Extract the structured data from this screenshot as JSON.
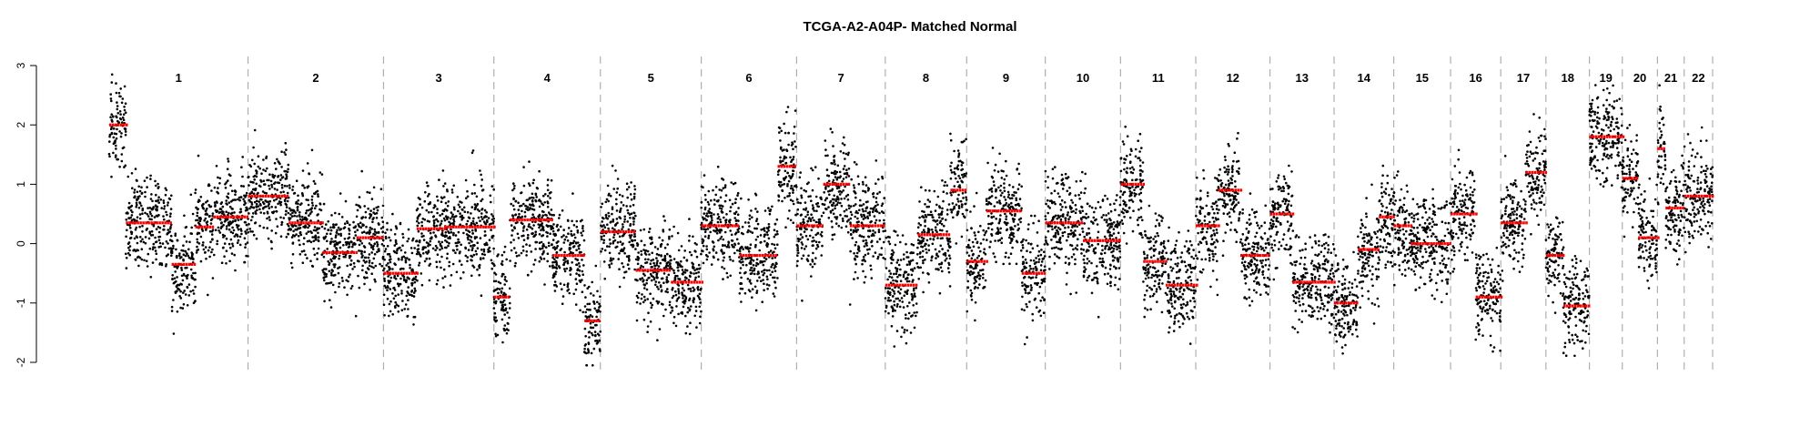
{
  "chart_data": {
    "type": "scatter",
    "title": "TCGA-A2-A04P- Matched Normal",
    "xlabel": "",
    "ylabel": "",
    "ylim": [
      -2.0,
      3.0
    ],
    "yticks": [
      -2,
      -1,
      0,
      1,
      2,
      3
    ],
    "grid": false,
    "legend": "none",
    "colors": {
      "points": "#000000",
      "segments": "#ff0000",
      "separators": "#b0b0b0"
    },
    "chromosomes": [
      {
        "label": "1",
        "rel_size": 249,
        "segments": [
          [
            0,
            0.12,
            2.0
          ],
          [
            0.12,
            0.45,
            0.35
          ],
          [
            0.45,
            0.62,
            -0.35
          ],
          [
            0.62,
            0.75,
            0.28
          ],
          [
            0.75,
            1.0,
            0.45
          ]
        ]
      },
      {
        "label": "2",
        "rel_size": 243,
        "segments": [
          [
            0,
            0.3,
            0.8
          ],
          [
            0.3,
            0.55,
            0.35
          ],
          [
            0.55,
            0.8,
            -0.15
          ],
          [
            0.8,
            1.0,
            0.1
          ]
        ]
      },
      {
        "label": "3",
        "rel_size": 198,
        "segments": [
          [
            0,
            0.3,
            -0.5
          ],
          [
            0.3,
            0.55,
            0.25
          ],
          [
            0.55,
            1.0,
            0.28
          ]
        ]
      },
      {
        "label": "4",
        "rel_size": 191,
        "segments": [
          [
            0,
            0.15,
            -0.9
          ],
          [
            0.15,
            0.55,
            0.4
          ],
          [
            0.55,
            0.85,
            -0.2
          ],
          [
            0.85,
            1.0,
            -1.3
          ]
        ]
      },
      {
        "label": "5",
        "rel_size": 181,
        "segments": [
          [
            0,
            0.35,
            0.2
          ],
          [
            0.35,
            0.7,
            -0.45
          ],
          [
            0.7,
            1.0,
            -0.65
          ]
        ]
      },
      {
        "label": "6",
        "rel_size": 171,
        "segments": [
          [
            0,
            0.4,
            0.3
          ],
          [
            0.4,
            0.8,
            -0.2
          ],
          [
            0.8,
            1.0,
            1.3
          ]
        ]
      },
      {
        "label": "7",
        "rel_size": 159,
        "segments": [
          [
            0,
            0.3,
            0.3
          ],
          [
            0.3,
            0.6,
            1.0
          ],
          [
            0.6,
            1.0,
            0.3
          ]
        ]
      },
      {
        "label": "8",
        "rel_size": 146,
        "segments": [
          [
            0,
            0.4,
            -0.7
          ],
          [
            0.4,
            0.8,
            0.15
          ],
          [
            0.8,
            1.0,
            0.9
          ]
        ]
      },
      {
        "label": "9",
        "rel_size": 141,
        "segments": [
          [
            0,
            0.25,
            -0.3
          ],
          [
            0.25,
            0.7,
            0.55
          ],
          [
            0.7,
            1.0,
            -0.5
          ]
        ]
      },
      {
        "label": "10",
        "rel_size": 135,
        "segments": [
          [
            0,
            0.5,
            0.35
          ],
          [
            0.5,
            1.0,
            0.05
          ]
        ]
      },
      {
        "label": "11",
        "rel_size": 135,
        "segments": [
          [
            0,
            0.3,
            1.0
          ],
          [
            0.3,
            0.6,
            -0.3
          ],
          [
            0.6,
            1.0,
            -0.7
          ]
        ]
      },
      {
        "label": "12",
        "rel_size": 133,
        "segments": [
          [
            0,
            0.3,
            0.3
          ],
          [
            0.3,
            0.6,
            0.9
          ],
          [
            0.6,
            1.0,
            -0.2
          ]
        ]
      },
      {
        "label": "13",
        "rel_size": 115,
        "segments": [
          [
            0,
            0.35,
            0.5
          ],
          [
            0.35,
            1.0,
            -0.65
          ]
        ]
      },
      {
        "label": "14",
        "rel_size": 107,
        "segments": [
          [
            0,
            0.4,
            -1.0
          ],
          [
            0.4,
            0.75,
            -0.1
          ],
          [
            0.75,
            1.0,
            0.45
          ]
        ]
      },
      {
        "label": "15",
        "rel_size": 102,
        "segments": [
          [
            0,
            0.3,
            0.3
          ],
          [
            0.3,
            1.0,
            0.0
          ]
        ]
      },
      {
        "label": "16",
        "rel_size": 90,
        "segments": [
          [
            0,
            0.5,
            0.5
          ],
          [
            0.5,
            1.0,
            -0.9
          ]
        ]
      },
      {
        "label": "17",
        "rel_size": 81,
        "segments": [
          [
            0,
            0.55,
            0.35
          ],
          [
            0.55,
            1.0,
            1.2
          ]
        ]
      },
      {
        "label": "18",
        "rel_size": 78,
        "segments": [
          [
            0,
            0.4,
            -0.2
          ],
          [
            0.4,
            1.0,
            -1.05
          ]
        ]
      },
      {
        "label": "19",
        "rel_size": 59,
        "segments": [
          [
            0,
            1.0,
            1.8
          ]
        ]
      },
      {
        "label": "20",
        "rel_size": 63,
        "segments": [
          [
            0,
            0.45,
            1.1
          ],
          [
            0.45,
            1.0,
            0.1
          ]
        ]
      },
      {
        "label": "21",
        "rel_size": 48,
        "segments": [
          [
            0,
            0.3,
            1.6
          ],
          [
            0.3,
            1.0,
            0.6
          ]
        ]
      },
      {
        "label": "22",
        "rel_size": 51,
        "segments": [
          [
            0,
            1.0,
            0.8
          ]
        ]
      }
    ]
  }
}
